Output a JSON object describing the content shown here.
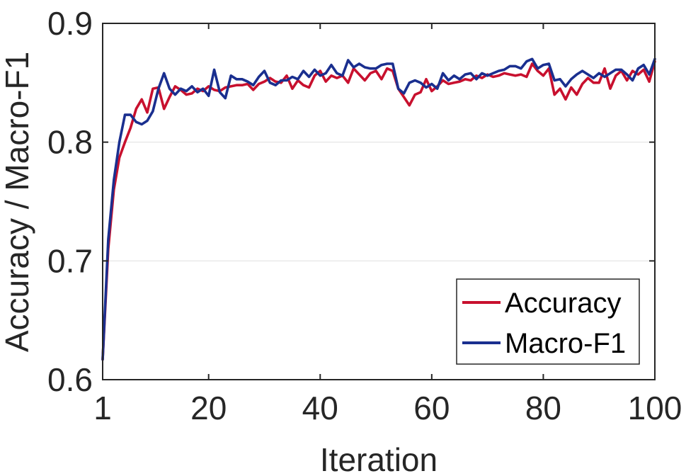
{
  "chart_data": {
    "type": "line",
    "xlabel": "Iteration",
    "ylabel": "Accuracy / Macro-F1",
    "xlim": [
      1,
      100
    ],
    "ylim": [
      0.6,
      0.9
    ],
    "xticks": [
      1,
      20,
      40,
      60,
      80,
      100
    ],
    "xtick_labels": [
      "1",
      "20",
      "40",
      "60",
      "80",
      "100"
    ],
    "yticks": [
      0.6,
      0.7,
      0.8,
      0.9
    ],
    "ytick_labels": [
      "0.6",
      "0.7",
      "0.8",
      "0.9"
    ],
    "grid": "horizontal",
    "legend_position": "bottom-right",
    "series": [
      {
        "name": "Accuracy",
        "color": "#C8102E",
        "x": [
          1,
          2,
          3,
          4,
          5,
          6,
          7,
          8,
          9,
          10,
          11,
          12,
          13,
          14,
          15,
          16,
          17,
          18,
          19,
          20,
          21,
          22,
          23,
          24,
          25,
          26,
          27,
          28,
          29,
          30,
          31,
          32,
          33,
          34,
          35,
          36,
          37,
          38,
          39,
          40,
          41,
          42,
          43,
          44,
          45,
          46,
          47,
          48,
          49,
          50,
          51,
          52,
          53,
          54,
          55,
          56,
          57,
          58,
          59,
          60,
          61,
          62,
          63,
          64,
          65,
          66,
          67,
          68,
          69,
          70,
          71,
          72,
          73,
          74,
          75,
          76,
          77,
          78,
          79,
          80,
          81,
          82,
          83,
          84,
          85,
          86,
          87,
          88,
          89,
          90,
          91,
          92,
          93,
          94,
          95,
          96,
          97,
          98,
          99,
          100
        ],
        "values": [
          0.617,
          0.71,
          0.76,
          0.787,
          0.8,
          0.812,
          0.828,
          0.836,
          0.825,
          0.845,
          0.846,
          0.828,
          0.838,
          0.847,
          0.844,
          0.84,
          0.841,
          0.845,
          0.843,
          0.847,
          0.844,
          0.843,
          0.846,
          0.847,
          0.848,
          0.848,
          0.849,
          0.844,
          0.849,
          0.851,
          0.854,
          0.851,
          0.85,
          0.856,
          0.845,
          0.852,
          0.848,
          0.846,
          0.856,
          0.86,
          0.851,
          0.856,
          0.854,
          0.856,
          0.85,
          0.862,
          0.857,
          0.852,
          0.858,
          0.86,
          0.853,
          0.862,
          0.86,
          0.845,
          0.838,
          0.831,
          0.84,
          0.842,
          0.853,
          0.843,
          0.847,
          0.852,
          0.849,
          0.85,
          0.851,
          0.853,
          0.852,
          0.856,
          0.854,
          0.857,
          0.855,
          0.856,
          0.858,
          0.857,
          0.856,
          0.857,
          0.855,
          0.866,
          0.86,
          0.856,
          0.862,
          0.84,
          0.845,
          0.836,
          0.846,
          0.84,
          0.849,
          0.854,
          0.85,
          0.85,
          0.862,
          0.845,
          0.856,
          0.86,
          0.852,
          0.86,
          0.857,
          0.861,
          0.851,
          0.868
        ]
      },
      {
        "name": "Macro-F1",
        "color": "#1A2F8F",
        "x": [
          1,
          2,
          3,
          4,
          5,
          6,
          7,
          8,
          9,
          10,
          11,
          12,
          13,
          14,
          15,
          16,
          17,
          18,
          19,
          20,
          21,
          22,
          23,
          24,
          25,
          26,
          27,
          28,
          29,
          30,
          31,
          32,
          33,
          34,
          35,
          36,
          37,
          38,
          39,
          40,
          41,
          42,
          43,
          44,
          45,
          46,
          47,
          48,
          49,
          50,
          51,
          52,
          53,
          54,
          55,
          56,
          57,
          58,
          59,
          60,
          61,
          62,
          63,
          64,
          65,
          66,
          67,
          68,
          69,
          70,
          71,
          72,
          73,
          74,
          75,
          76,
          77,
          78,
          79,
          80,
          81,
          82,
          83,
          84,
          85,
          86,
          87,
          88,
          89,
          90,
          91,
          92,
          93,
          94,
          95,
          96,
          97,
          98,
          99,
          100
        ],
        "values": [
          0.617,
          0.718,
          0.768,
          0.8,
          0.823,
          0.823,
          0.817,
          0.815,
          0.818,
          0.826,
          0.845,
          0.858,
          0.845,
          0.84,
          0.845,
          0.843,
          0.847,
          0.842,
          0.845,
          0.839,
          0.861,
          0.842,
          0.837,
          0.856,
          0.853,
          0.853,
          0.851,
          0.848,
          0.855,
          0.86,
          0.85,
          0.848,
          0.852,
          0.852,
          0.855,
          0.853,
          0.86,
          0.855,
          0.861,
          0.856,
          0.858,
          0.865,
          0.858,
          0.856,
          0.869,
          0.863,
          0.866,
          0.863,
          0.862,
          0.862,
          0.865,
          0.866,
          0.866,
          0.845,
          0.841,
          0.85,
          0.852,
          0.85,
          0.846,
          0.849,
          0.845,
          0.858,
          0.852,
          0.856,
          0.853,
          0.857,
          0.858,
          0.853,
          0.858,
          0.856,
          0.858,
          0.86,
          0.861,
          0.864,
          0.864,
          0.862,
          0.868,
          0.87,
          0.862,
          0.865,
          0.866,
          0.852,
          0.853,
          0.847,
          0.853,
          0.857,
          0.86,
          0.857,
          0.854,
          0.858,
          0.855,
          0.858,
          0.861,
          0.861,
          0.857,
          0.852,
          0.862,
          0.865,
          0.857,
          0.87
        ]
      }
    ]
  }
}
